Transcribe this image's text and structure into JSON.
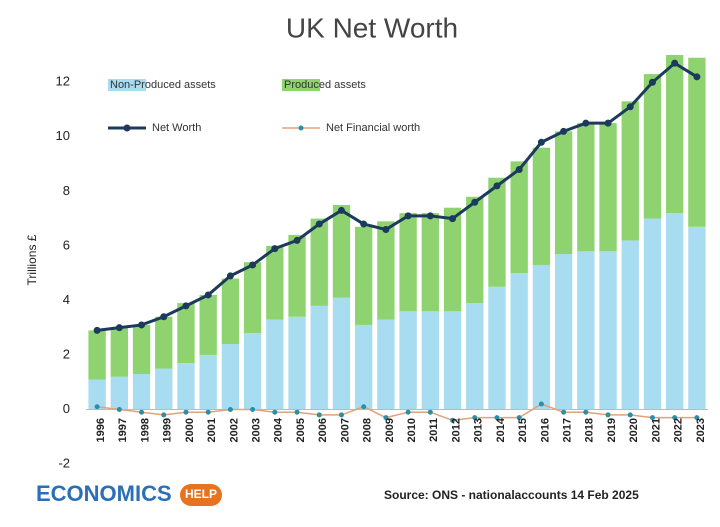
{
  "chart_data": {
    "type": "stacked-bar-line",
    "title": "UK Net Worth",
    "y_label": "Trillions £",
    "source": "Source: ONS - nationalaccounts 14 Feb 2025",
    "logo": {
      "left": "ECONOMICS",
      "right": "HELP"
    },
    "categories": [
      "1996",
      "1997",
      "1998",
      "1999",
      "2000",
      "2001",
      "2002",
      "2003",
      "2004",
      "2005",
      "2006",
      "2007",
      "2008",
      "2009",
      "2010",
      "2011",
      "2012",
      "2013",
      "2014",
      "2015",
      "2016",
      "2017",
      "2018",
      "2019",
      "2020",
      "2021",
      "2022",
      "2023"
    ],
    "ylim": [
      -2,
      13
    ],
    "yticks": [
      -2,
      0,
      2,
      4,
      6,
      8,
      10,
      12
    ],
    "series": [
      {
        "name": "Non-Produced assets",
        "color": "#a8dcf0",
        "kind": "bar",
        "values": [
          1.1,
          1.2,
          1.3,
          1.5,
          1.7,
          2.0,
          2.4,
          2.8,
          3.3,
          3.4,
          3.8,
          4.1,
          3.1,
          3.3,
          3.6,
          3.6,
          3.6,
          3.9,
          4.5,
          5.0,
          5.3,
          5.7,
          5.8,
          5.8,
          6.2,
          7.0,
          7.2,
          6.7
        ]
      },
      {
        "name": "Produced assets",
        "color": "#8ed36f",
        "kind": "bar",
        "values": [
          1.8,
          1.8,
          1.8,
          1.9,
          2.2,
          2.2,
          2.4,
          2.6,
          2.7,
          3.0,
          3.2,
          3.4,
          3.6,
          3.6,
          3.6,
          3.6,
          3.8,
          3.9,
          4.0,
          4.1,
          4.3,
          4.5,
          4.7,
          4.7,
          5.1,
          5.3,
          5.8,
          6.2
        ]
      },
      {
        "name": "Net Worth",
        "color": "#1b3a5c",
        "kind": "line",
        "values": [
          2.9,
          3.0,
          3.1,
          3.4,
          3.8,
          4.2,
          4.9,
          5.3,
          5.9,
          6.2,
          6.8,
          7.3,
          6.8,
          6.6,
          7.1,
          7.1,
          7.0,
          7.6,
          8.2,
          8.8,
          9.8,
          10.2,
          10.5,
          10.5,
          11.1,
          12.0,
          12.7,
          12.2
        ]
      },
      {
        "name": "Net Financial worth",
        "color": "#e0a27a",
        "marker_color": "#2a8fa8",
        "kind": "line",
        "values": [
          0.1,
          0.0,
          -0.1,
          -0.2,
          -0.1,
          -0.1,
          0.0,
          0.0,
          -0.1,
          -0.1,
          -0.2,
          -0.2,
          0.1,
          -0.3,
          -0.1,
          -0.1,
          -0.4,
          -0.3,
          -0.3,
          -0.3,
          0.2,
          -0.1,
          -0.1,
          -0.2,
          -0.2,
          -0.3,
          -0.3,
          -0.3
        ]
      }
    ]
  }
}
